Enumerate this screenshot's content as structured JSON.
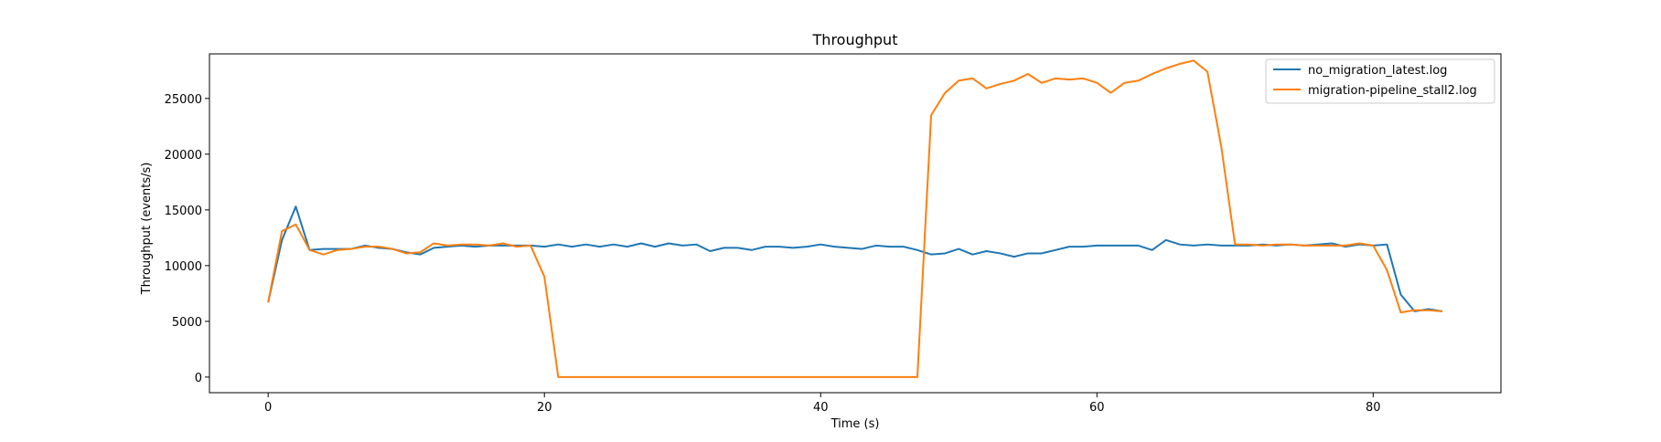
{
  "chart_data": {
    "type": "line",
    "title": "Throughput",
    "xlabel": "Time (s)",
    "ylabel": "Throughput (events/s)",
    "xlim": [
      -4.25,
      89.25
    ],
    "ylim": [
      -1400,
      29000
    ],
    "xticks": [
      0,
      20,
      40,
      60,
      80
    ],
    "yticks": [
      0,
      5000,
      10000,
      15000,
      20000,
      25000
    ],
    "grid": false,
    "legend_position": "top-right",
    "x": [
      0,
      1,
      2,
      3,
      4,
      5,
      6,
      7,
      8,
      9,
      10,
      11,
      12,
      13,
      14,
      15,
      16,
      17,
      18,
      19,
      20,
      21,
      22,
      23,
      24,
      25,
      26,
      27,
      28,
      29,
      30,
      31,
      32,
      33,
      34,
      35,
      36,
      37,
      38,
      39,
      40,
      41,
      42,
      43,
      44,
      45,
      46,
      47,
      48,
      49,
      50,
      51,
      52,
      53,
      54,
      55,
      56,
      57,
      58,
      59,
      60,
      61,
      62,
      63,
      64,
      65,
      66,
      67,
      68,
      69,
      70,
      71,
      72,
      73,
      74,
      75,
      76,
      77,
      78,
      79,
      80,
      81,
      82,
      83,
      84,
      85
    ],
    "series": [
      {
        "name": "no_migration_latest.log",
        "color": "#1f77b4",
        "values": [
          6700,
          12300,
          15300,
          11400,
          11500,
          11500,
          11500,
          11800,
          11600,
          11500,
          11200,
          11000,
          11600,
          11700,
          11800,
          11700,
          11800,
          11800,
          11800,
          11800,
          11700,
          11900,
          11700,
          11900,
          11700,
          11900,
          11700,
          12000,
          11700,
          12000,
          11800,
          11900,
          11300,
          11600,
          11600,
          11400,
          11700,
          11700,
          11600,
          11700,
          11900,
          11700,
          11600,
          11500,
          11800,
          11700,
          11700,
          11400,
          11000,
          11100,
          11500,
          11000,
          11300,
          11100,
          10800,
          11100,
          11100,
          11400,
          11700,
          11700,
          11800,
          11800,
          11800,
          11800,
          11400,
          12300,
          11900,
          11800,
          11900,
          11800,
          11800,
          11800,
          11900,
          11800,
          11900,
          11800,
          11900,
          12000,
          11700,
          11900,
          11800,
          11900,
          7400,
          5900,
          6100,
          5900
        ]
      },
      {
        "name": "migration-pipeline_stall2.log",
        "color": "#ff7f0e",
        "values": [
          6700,
          13100,
          13700,
          11400,
          11000,
          11400,
          11500,
          11700,
          11700,
          11500,
          11100,
          11200,
          12000,
          11800,
          11900,
          11900,
          11800,
          12000,
          11700,
          11800,
          9000,
          0,
          0,
          0,
          0,
          0,
          0,
          0,
          0,
          0,
          0,
          0,
          0,
          0,
          0,
          0,
          0,
          0,
          0,
          0,
          0,
          0,
          0,
          0,
          0,
          0,
          0,
          0,
          23500,
          25500,
          26600,
          26800,
          25900,
          26300,
          26600,
          27200,
          26400,
          26800,
          26700,
          26800,
          26400,
          25500,
          26400,
          26600,
          27200,
          27700,
          28100,
          28400,
          27400,
          20700,
          11900,
          11900,
          11800,
          11900,
          11900,
          11800,
          11800,
          11800,
          11800,
          12000,
          11800,
          9600,
          5800,
          6000,
          6000,
          5900
        ]
      }
    ]
  }
}
